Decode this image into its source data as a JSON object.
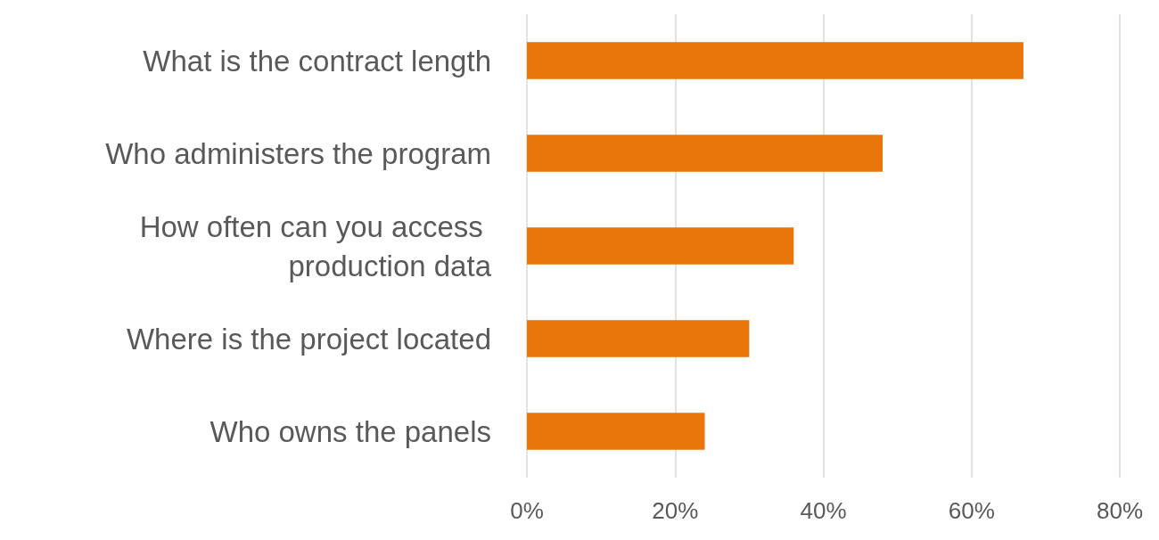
{
  "chart_data": {
    "type": "bar",
    "orientation": "horizontal",
    "categories": [
      "What is the contract length",
      "Who administers the program",
      "How often can you access production data",
      "Where is the project located",
      "Who owns the panels"
    ],
    "values": [
      67,
      48,
      36,
      30,
      24
    ],
    "color": "#e8760b",
    "xlim": [
      0,
      80
    ],
    "xticks": [
      {
        "value": 0,
        "label": "0%"
      },
      {
        "value": 20,
        "label": "20%"
      },
      {
        "value": 40,
        "label": "40%"
      },
      {
        "value": 60,
        "label": "60%"
      },
      {
        "value": 80,
        "label": "80%"
      }
    ],
    "grid": "x"
  }
}
